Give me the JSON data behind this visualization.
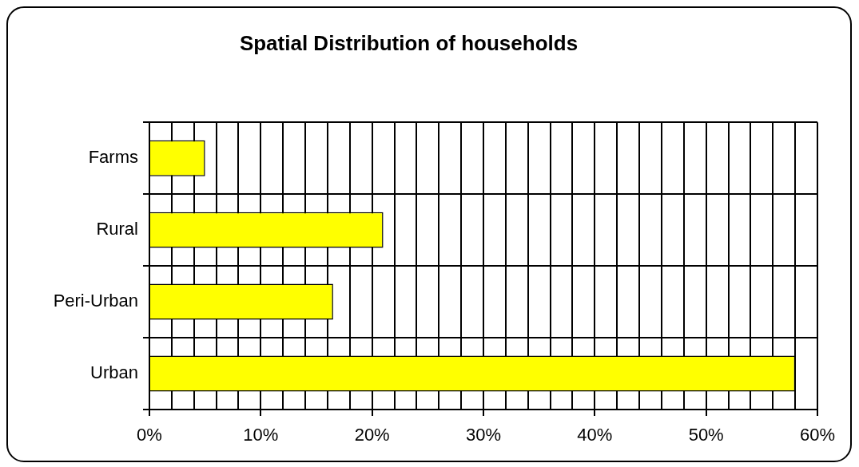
{
  "chart_data": {
    "type": "bar",
    "orientation": "horizontal",
    "title": "Spatial Distribution of households",
    "categories": [
      "Farms",
      "Rural",
      "Peri-Urban",
      "Urban"
    ],
    "values": [
      5,
      21,
      16.5,
      58
    ],
    "color": "#ffff00",
    "xlim": [
      0,
      60
    ],
    "xticks": [
      {
        "value": 0,
        "label": "0%"
      },
      {
        "value": 2,
        "label": null
      },
      {
        "value": 4,
        "label": null
      },
      {
        "value": 6,
        "label": null
      },
      {
        "value": 8,
        "label": null
      },
      {
        "value": 10,
        "label": "10%"
      },
      {
        "value": 12,
        "label": null
      },
      {
        "value": 14,
        "label": null
      },
      {
        "value": 16,
        "label": null
      },
      {
        "value": 18,
        "label": null
      },
      {
        "value": 20,
        "label": "20%"
      },
      {
        "value": 22,
        "label": null
      },
      {
        "value": 24,
        "label": null
      },
      {
        "value": 26,
        "label": null
      },
      {
        "value": 28,
        "label": null
      },
      {
        "value": 30,
        "label": "30%"
      },
      {
        "value": 32,
        "label": null
      },
      {
        "value": 34,
        "label": null
      },
      {
        "value": 36,
        "label": null
      },
      {
        "value": 38,
        "label": null
      },
      {
        "value": 40,
        "label": "40%"
      },
      {
        "value": 42,
        "label": null
      },
      {
        "value": 44,
        "label": null
      },
      {
        "value": 46,
        "label": null
      },
      {
        "value": 48,
        "label": null
      },
      {
        "value": 50,
        "label": "50%"
      },
      {
        "value": 52,
        "label": null
      },
      {
        "value": 54,
        "label": null
      },
      {
        "value": 56,
        "label": null
      },
      {
        "value": 58,
        "label": null
      },
      {
        "value": 60,
        "label": "60%"
      }
    ],
    "grid": true,
    "legend": false
  }
}
